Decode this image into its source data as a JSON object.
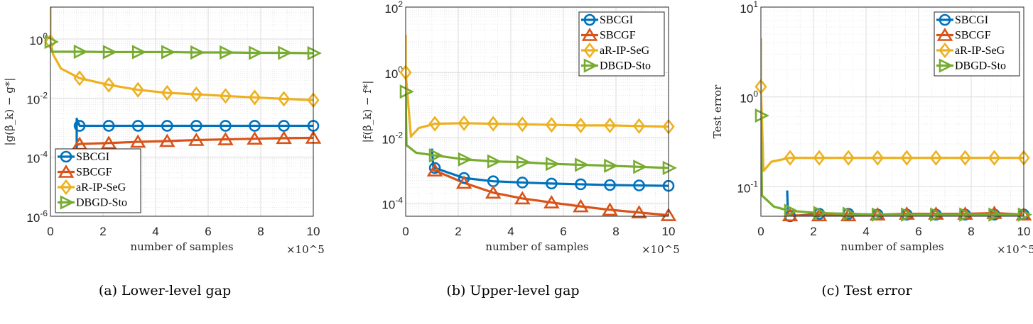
{
  "colors": {
    "SBCGI": "#0072BD",
    "SBCGF": "#D95319",
    "aR-IP-SeG": "#EDB120",
    "DBGD-Sto": "#77AC30"
  },
  "marker_x": [
    0,
    1.11,
    2.22,
    3.33,
    4.44,
    5.55,
    6.66,
    7.77,
    8.88,
    10
  ],
  "chart_data": [
    {
      "type": "line",
      "caption": "(a) Lower-level gap",
      "xlabel": "number of samples",
      "x_multiplier": "×10^5",
      "ylabel": "|g(β_k) − g*|",
      "yscale": "log",
      "xlim": [
        0,
        10
      ],
      "ylim": [
        1e-06,
        12
      ],
      "xticks": [
        0,
        2,
        4,
        6,
        8,
        10
      ],
      "yticks": [
        1,
        0.01,
        0.0001,
        1e-06
      ],
      "grid": true,
      "legend_position": "bottom-left",
      "series": [
        {
          "name": "SBCGI",
          "marker": "circle",
          "points": [
            [
              1,
              0.0002
            ],
            [
              1,
              0.002
            ],
            [
              1.11,
              0.00115
            ],
            [
              2.22,
              0.00115
            ],
            [
              3.33,
              0.00115
            ],
            [
              4.44,
              0.00115
            ],
            [
              5.55,
              0.00115
            ],
            [
              6.66,
              0.00115
            ],
            [
              7.77,
              0.00115
            ],
            [
              8.88,
              0.00115
            ],
            [
              10,
              0.00115
            ]
          ]
        },
        {
          "name": "SBCGF",
          "marker": "triangle-up",
          "points": [
            [
              1,
              0.00025
            ],
            [
              1.11,
              0.00028
            ],
            [
              2.22,
              0.0003
            ],
            [
              3.33,
              0.00033
            ],
            [
              4.44,
              0.00035
            ],
            [
              5.55,
              0.00038
            ],
            [
              6.66,
              0.0004
            ],
            [
              7.77,
              0.00042
            ],
            [
              8.88,
              0.00044
            ],
            [
              10,
              0.00045
            ]
          ]
        },
        {
          "name": "aR-IP-SeG",
          "marker": "diamond",
          "points": [
            [
              0,
              12
            ],
            [
              0,
              0.8
            ],
            [
              0.1,
              0.3
            ],
            [
              0.4,
              0.1
            ],
            [
              1.11,
              0.047
            ],
            [
              2.22,
              0.028
            ],
            [
              3.33,
              0.019
            ],
            [
              4.44,
              0.015
            ],
            [
              5.55,
              0.0134
            ],
            [
              6.66,
              0.0118
            ],
            [
              7.77,
              0.0105
            ],
            [
              8.88,
              0.0094
            ],
            [
              10,
              0.0085
            ]
          ]
        },
        {
          "name": "DBGD-Sto",
          "marker": "triangle-right",
          "points": [
            [
              0,
              0.8
            ],
            [
              0.05,
              0.37
            ],
            [
              1.11,
              0.37
            ],
            [
              2.22,
              0.36
            ],
            [
              3.33,
              0.36
            ],
            [
              4.44,
              0.36
            ],
            [
              5.55,
              0.35
            ],
            [
              6.66,
              0.35
            ],
            [
              7.77,
              0.34
            ],
            [
              8.88,
              0.34
            ],
            [
              10,
              0.33
            ]
          ]
        }
      ]
    },
    {
      "type": "line",
      "caption": "(b) Upper-level gap",
      "xlabel": "number of samples",
      "x_multiplier": "×10^5",
      "ylabel": "|f(β_k) − f*|",
      "yscale": "log",
      "xlim": [
        0,
        10
      ],
      "ylim": [
        4e-05,
        100
      ],
      "xticks": [
        0,
        2,
        4,
        6,
        8,
        10
      ],
      "yticks": [
        100,
        1,
        0.01,
        0.0001
      ],
      "grid": true,
      "legend_position": "top-right",
      "series": [
        {
          "name": "SBCGI",
          "marker": "circle",
          "points": [
            [
              1,
              0.0047
            ],
            [
              1.05,
              0.0013
            ],
            [
              1.11,
              0.0012
            ],
            [
              2.22,
              0.00059
            ],
            [
              3.33,
              0.00047
            ],
            [
              4.44,
              0.00043
            ],
            [
              5.55,
              0.0004
            ],
            [
              6.66,
              0.00038
            ],
            [
              7.77,
              0.00036
            ],
            [
              8.88,
              0.00035
            ],
            [
              10,
              0.00034
            ]
          ]
        },
        {
          "name": "SBCGF",
          "marker": "triangle-up",
          "points": [
            [
              1,
              0.0011
            ],
            [
              1.11,
              0.001
            ],
            [
              2.22,
              0.00042
            ],
            [
              3.33,
              0.00021
            ],
            [
              4.44,
              0.00014
            ],
            [
              5.55,
              0.000105
            ],
            [
              6.66,
              8e-05
            ],
            [
              7.77,
              6.3e-05
            ],
            [
              8.88,
              5.2e-05
            ],
            [
              10,
              4.3e-05
            ]
          ]
        },
        {
          "name": "aR-IP-SeG",
          "marker": "diamond",
          "points": [
            [
              0,
              14
            ],
            [
              0,
              1.0
            ],
            [
              0.2,
              0.011
            ],
            [
              0.5,
              0.02
            ],
            [
              1.11,
              0.027
            ],
            [
              2.22,
              0.028
            ],
            [
              3.33,
              0.027
            ],
            [
              4.44,
              0.026
            ],
            [
              5.55,
              0.025
            ],
            [
              6.66,
              0.024
            ],
            [
              7.77,
              0.024
            ],
            [
              8.88,
              0.023
            ],
            [
              10,
              0.022
            ]
          ]
        },
        {
          "name": "DBGD-Sto",
          "marker": "triangle-right",
          "points": [
            [
              0,
              0.26
            ],
            [
              0.03,
              0.006
            ],
            [
              0.4,
              0.0035
            ],
            [
              1.11,
              0.0029
            ],
            [
              2.22,
              0.0022
            ],
            [
              3.33,
              0.0019
            ],
            [
              4.44,
              0.0018
            ],
            [
              5.55,
              0.0016
            ],
            [
              6.66,
              0.0015
            ],
            [
              7.77,
              0.0014
            ],
            [
              8.88,
              0.0013
            ],
            [
              10,
              0.0012
            ]
          ]
        }
      ]
    },
    {
      "type": "line",
      "caption": "(c) Test error",
      "xlabel": "number of samples",
      "x_multiplier": "×10^5",
      "ylabel": "Test error",
      "yscale": "log",
      "xlim": [
        0,
        10
      ],
      "ylim": [
        0.047,
        10
      ],
      "xticks": [
        0,
        2,
        4,
        6,
        8,
        10
      ],
      "yticks": [
        10,
        1,
        0.1
      ],
      "grid": true,
      "legend_position": "top-right",
      "series": [
        {
          "name": "SBCGI",
          "marker": "circle",
          "points": [
            [
              1,
              0.091
            ],
            [
              1.03,
              0.05
            ],
            [
              1.11,
              0.047
            ],
            [
              2.22,
              0.05
            ],
            [
              3.33,
              0.05
            ],
            [
              4.44,
              0.049
            ],
            [
              5.55,
              0.049
            ],
            [
              6.66,
              0.049
            ],
            [
              7.77,
              0.049
            ],
            [
              8.88,
              0.049
            ],
            [
              10,
              0.049
            ]
          ]
        },
        {
          "name": "SBCGF",
          "marker": "triangle-up",
          "points": [
            [
              1,
              0.048
            ],
            [
              1.11,
              0.048
            ],
            [
              2.22,
              0.048
            ],
            [
              3.33,
              0.048
            ],
            [
              4.44,
              0.049
            ],
            [
              5.55,
              0.05
            ],
            [
              6.66,
              0.05
            ],
            [
              7.77,
              0.05
            ],
            [
              8.88,
              0.051
            ],
            [
              10,
              0.049
            ]
          ]
        },
        {
          "name": "aR-IP-SeG",
          "marker": "diamond",
          "points": [
            [
              0,
              4.5
            ],
            [
              0,
              1.3
            ],
            [
              0.1,
              0.15
            ],
            [
              0.4,
              0.19
            ],
            [
              1.11,
              0.21
            ],
            [
              2.22,
              0.21
            ],
            [
              3.33,
              0.21
            ],
            [
              4.44,
              0.21
            ],
            [
              5.55,
              0.21
            ],
            [
              6.66,
              0.21
            ],
            [
              7.77,
              0.21
            ],
            [
              8.88,
              0.21
            ],
            [
              10,
              0.21
            ]
          ]
        },
        {
          "name": "DBGD-Sto",
          "marker": "triangle-right",
          "points": [
            [
              0,
              0.62
            ],
            [
              0.04,
              0.08
            ],
            [
              0.5,
              0.06
            ],
            [
              1.11,
              0.054
            ],
            [
              2.22,
              0.051
            ],
            [
              3.33,
              0.05
            ],
            [
              4.44,
              0.049
            ],
            [
              5.55,
              0.049
            ],
            [
              6.66,
              0.049
            ],
            [
              7.77,
              0.049
            ],
            [
              8.88,
              0.049
            ],
            [
              10,
              0.049
            ]
          ]
        }
      ]
    }
  ]
}
